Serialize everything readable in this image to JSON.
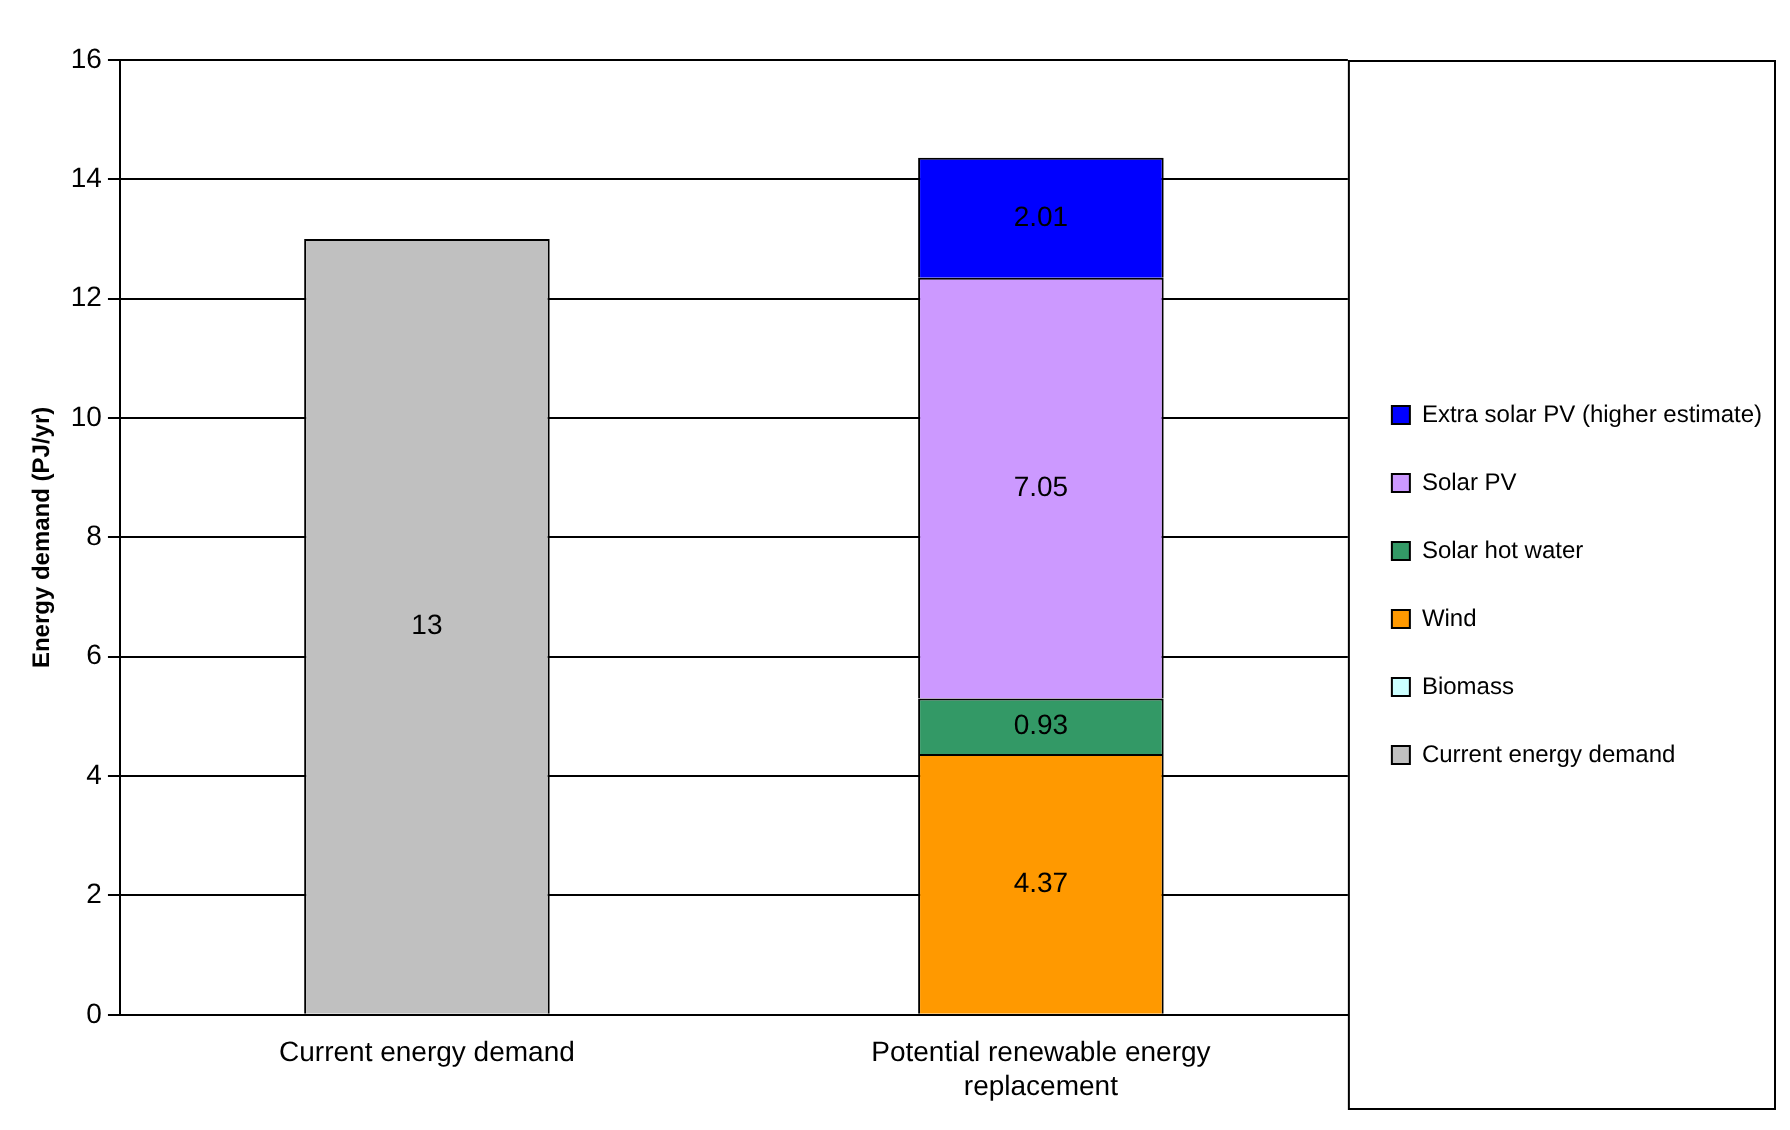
{
  "chart_data": {
    "type": "bar",
    "stacked": true,
    "ylabel": "Energy demand (PJ/yr)",
    "categories": [
      "Current energy demand",
      "Potential renewable energy replacement"
    ],
    "ylim": [
      0,
      16
    ],
    "yticks": [
      0,
      2,
      4,
      6,
      8,
      10,
      12,
      14,
      16
    ],
    "grid": "y",
    "legend": "right",
    "series": [
      {
        "name": "Current energy demand",
        "color": "#c0c0c0",
        "values": [
          13,
          null
        ],
        "value_labels": [
          "13",
          null
        ]
      },
      {
        "name": "Biomass",
        "color": "#ccffff",
        "values": [
          null,
          0
        ],
        "value_labels": [
          null,
          null
        ]
      },
      {
        "name": "Wind",
        "color": "#ff9900",
        "values": [
          null,
          4.37
        ],
        "value_labels": [
          null,
          "4.37"
        ]
      },
      {
        "name": "Solar hot water",
        "color": "#339966",
        "values": [
          null,
          0.93
        ],
        "value_labels": [
          null,
          "0.93"
        ]
      },
      {
        "name": "Solar PV",
        "color": "#cc99ff",
        "values": [
          null,
          7.05
        ],
        "value_labels": [
          null,
          "7.05"
        ]
      },
      {
        "name": "Extra solar PV (higher estimate)",
        "color": "#0000ff",
        "values": [
          null,
          2.01
        ],
        "value_labels": [
          null,
          "2.01"
        ]
      }
    ]
  }
}
